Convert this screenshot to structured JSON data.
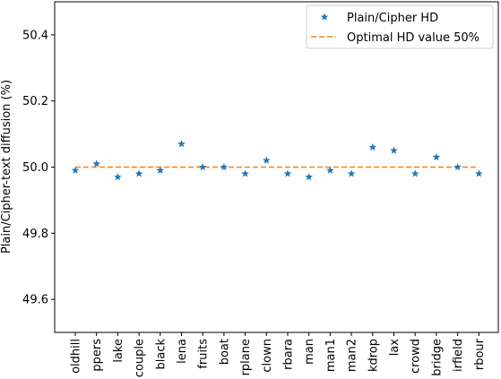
{
  "chart_data": {
    "type": "scatter",
    "ylabel": "Plain/Cipher-text diffusion (%)",
    "xlabel": "",
    "title": "",
    "ylim": [
      49.5,
      50.5
    ],
    "yticks": [
      "49.6",
      "49.8",
      "50.0",
      "50.2",
      "50.4"
    ],
    "categories": [
      "oldhill",
      "ppers",
      "lake",
      "couple",
      "black",
      "lena",
      "fruits",
      "boat",
      "rplane",
      "clown",
      "rbara",
      "man",
      "man1",
      "man2",
      "kdrop",
      "lax",
      "crowd",
      "bridge",
      "irfield",
      "rbour"
    ],
    "series": [
      {
        "name": "Plain/Cipher HD",
        "marker": "star",
        "color": "#1f77b4",
        "values": [
          49.99,
          50.01,
          49.97,
          49.98,
          49.99,
          50.07,
          50.0,
          50.0,
          49.98,
          50.02,
          49.98,
          49.97,
          49.99,
          49.98,
          50.06,
          50.05,
          49.98,
          50.03,
          50.0,
          49.98
        ]
      },
      {
        "name": "Optimal HD value 50%",
        "style": "dashed-line",
        "color": "#ff7f0e",
        "value": 50.0
      }
    ],
    "legend": "top-right",
    "grid": false
  }
}
